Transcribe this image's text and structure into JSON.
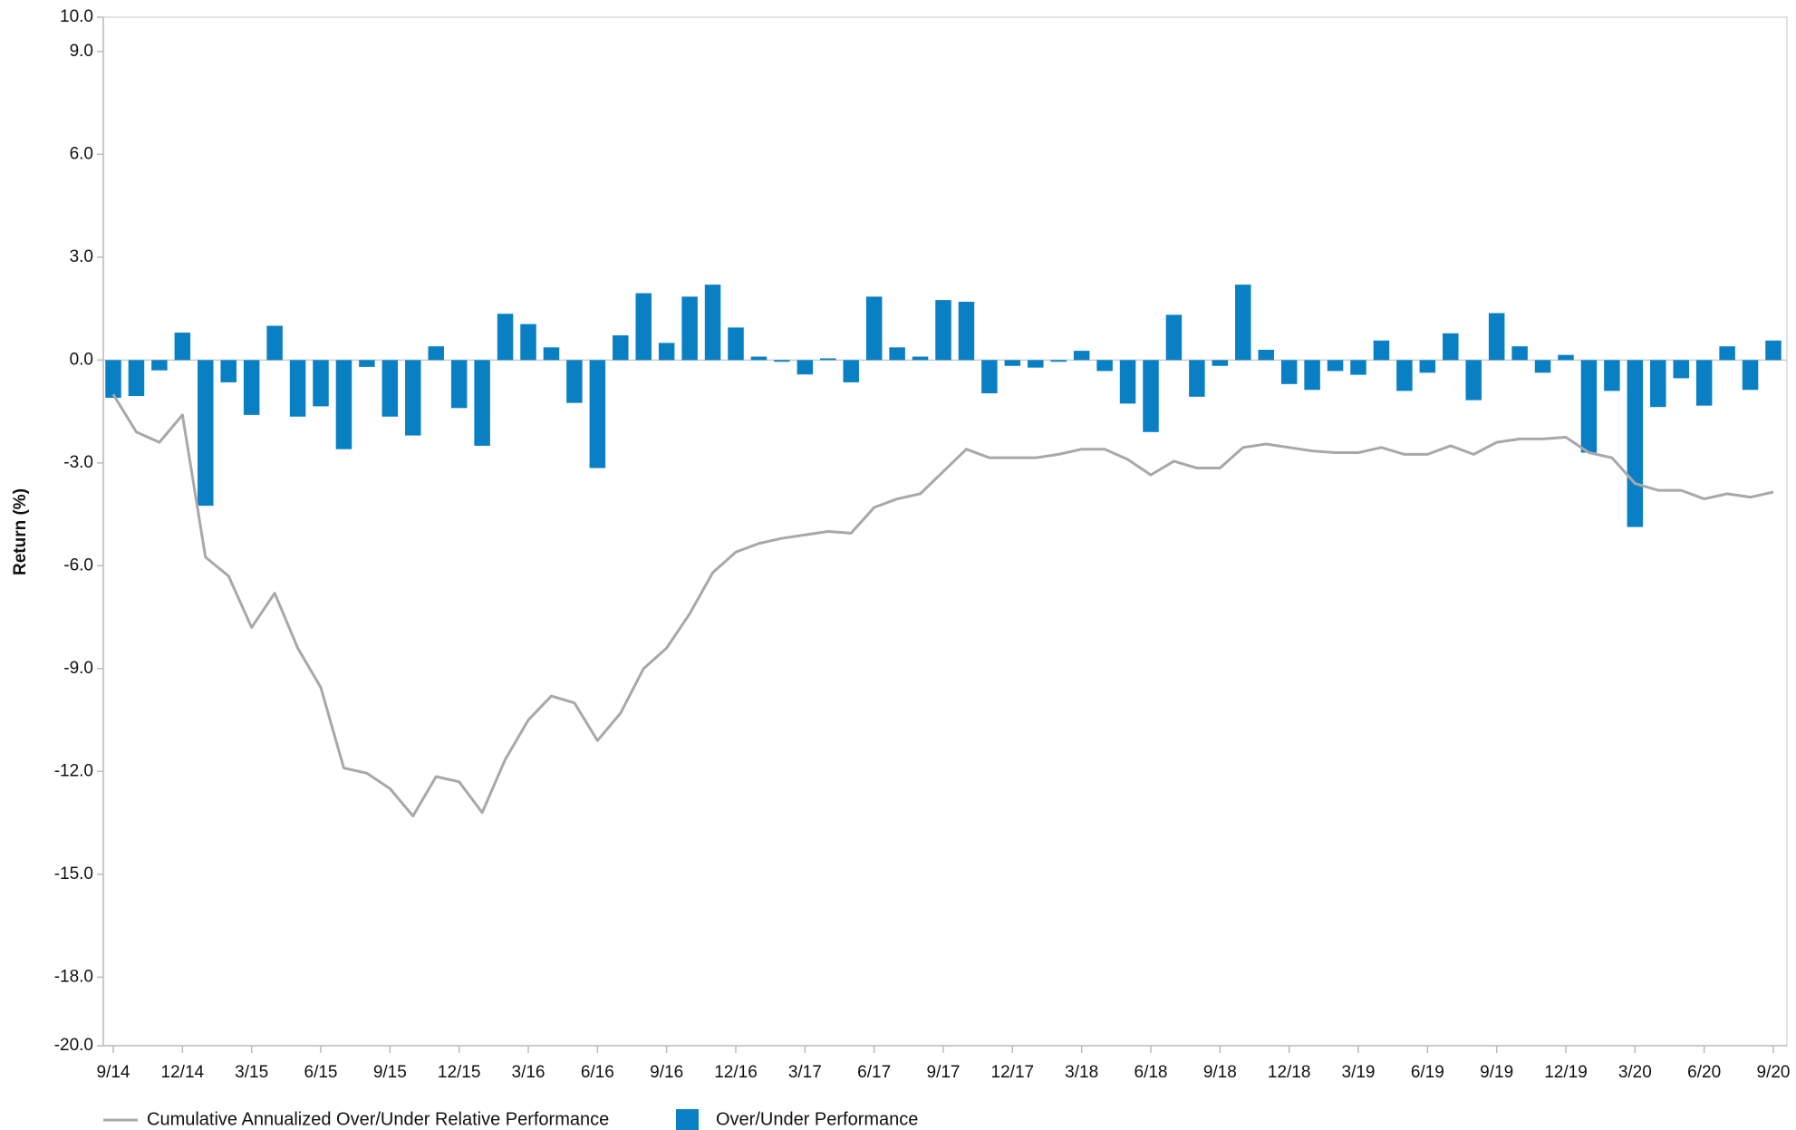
{
  "chart_data": {
    "type": "bar",
    "y_label": "Return (%)",
    "categories": [
      "9/14",
      null,
      null,
      "12/14",
      null,
      null,
      "3/15",
      null,
      null,
      "6/15",
      null,
      null,
      "9/15",
      null,
      null,
      "12/15",
      null,
      null,
      "3/16",
      null,
      null,
      "6/16",
      null,
      null,
      "9/16",
      null,
      null,
      "12/16",
      null,
      null,
      "3/17",
      null,
      null,
      "6/17",
      null,
      null,
      "9/17",
      null,
      null,
      "12/17",
      null,
      null,
      "3/18",
      null,
      null,
      "6/18",
      null,
      null,
      "9/18",
      null,
      null,
      "12/18",
      null,
      null,
      "3/19",
      null,
      null,
      "6/19",
      null,
      null,
      "9/19",
      null,
      null,
      "12/19",
      null,
      null,
      "3/20",
      null,
      null,
      "6/20",
      null,
      null,
      "9/20"
    ],
    "series": [
      {
        "name": "Cumulative Annualized Over/Under Relative Performance",
        "type": "line",
        "color": "#a8a8a8",
        "values": [
          -1.0,
          -2.1,
          -2.4,
          -1.6,
          -5.75,
          -6.3,
          -7.8,
          -6.8,
          -8.4,
          -9.55,
          -11.9,
          -12.05,
          -12.5,
          -13.3,
          -12.15,
          -12.3,
          -13.2,
          -11.65,
          -10.5,
          -9.8,
          -10.0,
          -11.1,
          -10.3,
          -9.0,
          -8.4,
          -7.4,
          -6.2,
          -5.6,
          -5.35,
          -5.2,
          -5.1,
          -5.0,
          -5.05,
          -4.3,
          -4.05,
          -3.9,
          -3.25,
          -2.6,
          -2.85,
          -2.85,
          -2.85,
          -2.75,
          -2.6,
          -2.6,
          -2.9,
          -3.35,
          -2.95,
          -3.15,
          -3.15,
          -2.55,
          -2.45,
          -2.55,
          -2.65,
          -2.7,
          -2.7,
          -2.55,
          -2.75,
          -2.75,
          -2.5,
          -2.75,
          -2.4,
          -2.3,
          -2.3,
          -2.25,
          -2.7,
          -2.85,
          -3.6,
          -3.8,
          -3.8,
          -4.05,
          -3.9,
          -4.0,
          -3.85
        ]
      },
      {
        "name": "Over/Under Performance",
        "type": "bar",
        "color": "#0a80c4",
        "values": [
          -1.1,
          -1.05,
          -0.3,
          0.8,
          -4.25,
          -0.65,
          -1.6,
          1.0,
          -1.65,
          -1.35,
          -2.6,
          -0.2,
          -1.65,
          -2.2,
          0.4,
          -1.4,
          -2.5,
          1.35,
          1.05,
          0.37,
          -1.25,
          -3.15,
          0.72,
          1.95,
          0.5,
          1.85,
          2.2,
          0.95,
          0.1,
          -0.05,
          -0.42,
          0.05,
          -0.65,
          1.85,
          0.37,
          0.1,
          1.75,
          1.7,
          -0.97,
          -0.17,
          -0.22,
          -0.05,
          0.27,
          -0.32,
          -1.27,
          -2.1,
          1.32,
          -1.07,
          -0.17,
          2.2,
          0.3,
          -0.7,
          -0.87,
          -0.32,
          -0.43,
          0.57,
          -0.9,
          -0.37,
          0.78,
          -1.17,
          1.37,
          0.4,
          -0.37,
          0.15,
          -2.7,
          -0.9,
          -4.87,
          -1.37,
          -0.53,
          -1.33,
          0.4,
          -0.87,
          0.57
        ]
      }
    ],
    "ylim": [
      -20,
      10
    ],
    "yticks": [
      {
        "value": 10,
        "label": "10.0"
      },
      {
        "value": 9,
        "label": "9.0"
      },
      {
        "value": 6,
        "label": "6.0"
      },
      {
        "value": 3,
        "label": "3.0"
      },
      {
        "value": 0,
        "label": "0.0"
      },
      {
        "value": -3,
        "label": "-3.0"
      },
      {
        "value": -6,
        "label": "-6.0"
      },
      {
        "value": -9,
        "label": "-9.0"
      },
      {
        "value": -12,
        "label": "-12.0"
      },
      {
        "value": -15,
        "label": "-15.0"
      },
      {
        "value": -18,
        "label": "-18.0"
      },
      {
        "value": -20,
        "label": "-20.0"
      }
    ],
    "grid": false
  }
}
